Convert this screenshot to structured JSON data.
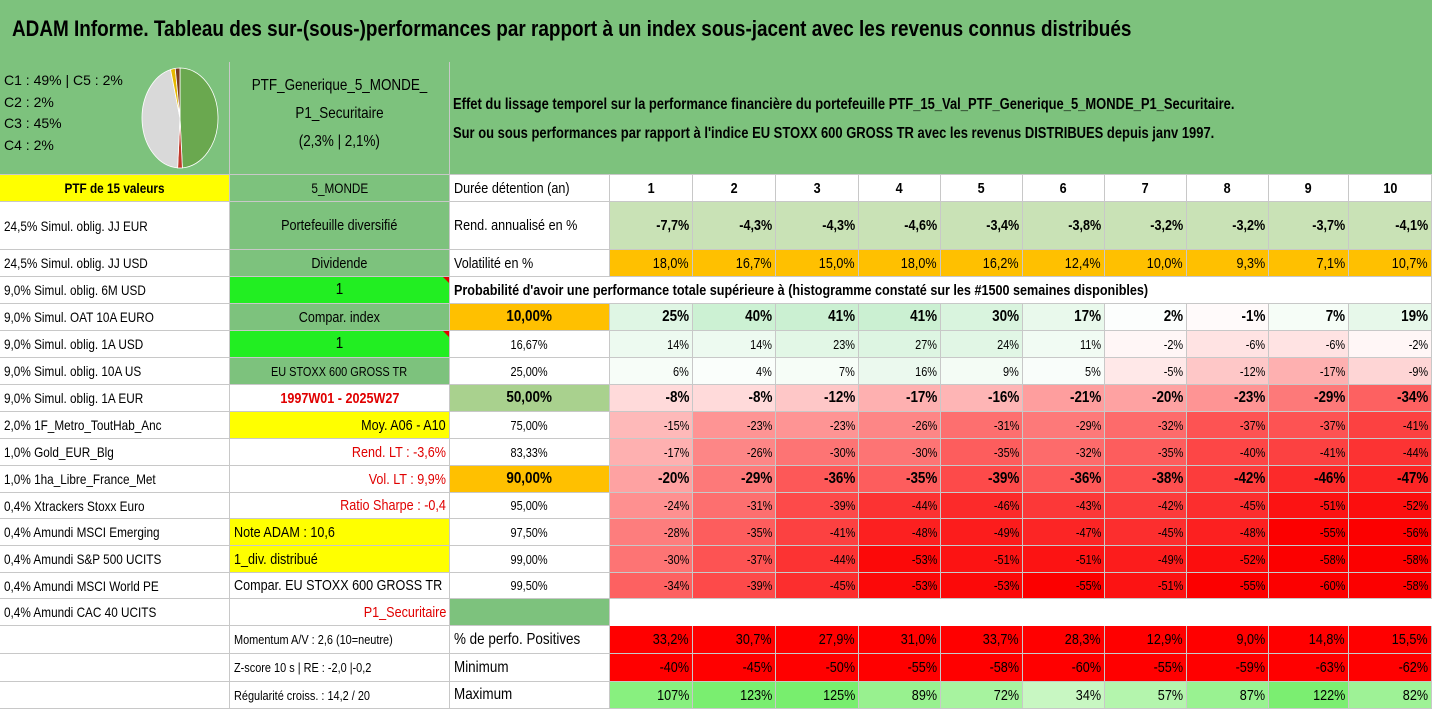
{
  "title": "ADAM Informe. Tableau des sur-(sous-)performances par rapport à un index sous-jacent avec les revenus connus distribués",
  "pie_legend": [
    "C1 : 49% | C5 : 2%",
    "C2 : 2%",
    "C3 : 45%",
    "C4 : 2%"
  ],
  "pie_slices": [
    {
      "label": "C1",
      "value": 49,
      "color": "#6aa84f"
    },
    {
      "label": "C2",
      "value": 2,
      "color": "#c0392b"
    },
    {
      "label": "C3",
      "value": 45,
      "color": "#d9d9d9"
    },
    {
      "label": "C4",
      "value": 2,
      "color": "#e6b800"
    },
    {
      "label": "C5",
      "value": 2,
      "color": "#7a3b1f"
    }
  ],
  "portfolio": {
    "name_line1": "PTF_Generique_5_MONDE_",
    "name_line2": "P1_Securitaire",
    "name_line3": "(2,3% | 2,1%)",
    "count_label": "PTF de 15 valeurs",
    "family": "5_MONDE",
    "type": "Portefeuille diversifié",
    "dividend_label": "Dividende",
    "dividend_value": "1",
    "compar_label": "Compar. index",
    "compar_value": "1",
    "index_name": "EU STOXX 600 GROSS TR",
    "period": "1997W01 - 2025W27",
    "moy": "Moy. A06 - A10",
    "rend_lt": "Rend. LT : -3,6%",
    "vol_lt": "Vol. LT : 9,9%",
    "sharpe": "Ratio Sharpe : -0,4",
    "note": "Note ADAM : 10,6",
    "div_distrib": "1_div. distribué",
    "compar_full": "Compar. EU STOXX 600 GROSS TR",
    "profile": "P1_Securitaire",
    "momentum": "Momentum A/V : 2,6 (10=neutre)",
    "zscore": "Z-score 10 s | RE : -2,0 |-0,2",
    "regularite": "Régularité croiss. : 14,2 / 20"
  },
  "holdings": [
    "24,5% Simul. oblig. JJ EUR",
    "24,5% Simul. oblig. JJ USD",
    "9,0% Simul. oblig. 6M USD",
    "9,0% Simul. OAT 10A EURO",
    "9,0% Simul. oblig. 1A USD",
    "9,0% Simul. oblig. 10A US",
    "9,0% Simul. oblig. 1A EUR",
    "2,0% 1F_Metro_ToutHab_Anc",
    "1,0% Gold_EUR_Blg",
    "1,0% 1ha_Libre_France_Met",
    "0,4% Xtrackers Stoxx Euro",
    "0,4% Amundi MSCI Emerging",
    "0,4% Amundi S&P 500 UCITS",
    "0,4% Amundi MSCI World PE",
    "0,4% Amundi CAC 40 UCITS"
  ],
  "description_line1": "Effet du lissage temporel sur la performance financière du portefeuille PTF_15_Val_PTF_Generique_5_MONDE_P1_Securitaire.",
  "description_line2": "Sur ou sous performances par rapport à l'indice EU STOXX 600 GROSS TR avec les revenus DISTRIBUES depuis janv 1997.",
  "duree_label": "Durée détention (an)",
  "years": [
    "1",
    "2",
    "3",
    "4",
    "5",
    "6",
    "7",
    "8",
    "9",
    "10"
  ],
  "rend_label": "Rend. annualisé en %",
  "rend": [
    "-7,7%",
    "-4,3%",
    "-4,3%",
    "-4,6%",
    "-3,4%",
    "-3,8%",
    "-3,2%",
    "-3,2%",
    "-3,7%",
    "-4,1%"
  ],
  "vol_label": "Volatilité en %",
  "vol": [
    "18,0%",
    "16,7%",
    "15,0%",
    "18,0%",
    "16,2%",
    "12,4%",
    "10,0%",
    "9,3%",
    "7,1%",
    "10,7%"
  ],
  "prob_title": "Probabilité d'avoir une performance totale supérieure à (histogramme constaté sur les #1500 semaines disponibles)",
  "prob_rows": [
    {
      "level": "10,00%",
      "bold": true,
      "values": [
        "25%",
        "40%",
        "41%",
        "41%",
        "30%",
        "17%",
        "2%",
        "-1%",
        "7%",
        "19%"
      ],
      "nums": [
        25,
        40,
        41,
        41,
        30,
        17,
        2,
        -1,
        7,
        19
      ]
    },
    {
      "level": "16,67%",
      "bold": false,
      "values": [
        "14%",
        "14%",
        "23%",
        "27%",
        "24%",
        "11%",
        "-2%",
        "-6%",
        "-6%",
        "-2%"
      ],
      "nums": [
        14,
        14,
        23,
        27,
        24,
        11,
        -2,
        -6,
        -6,
        -2
      ]
    },
    {
      "level": "25,00%",
      "bold": false,
      "values": [
        "6%",
        "4%",
        "7%",
        "16%",
        "9%",
        "5%",
        "-5%",
        "-12%",
        "-17%",
        "-9%"
      ],
      "nums": [
        6,
        4,
        7,
        16,
        9,
        5,
        -5,
        -12,
        -17,
        -9
      ]
    },
    {
      "level": "50,00%",
      "bold": true,
      "values": [
        "-8%",
        "-8%",
        "-12%",
        "-17%",
        "-16%",
        "-21%",
        "-20%",
        "-23%",
        "-29%",
        "-34%"
      ],
      "nums": [
        -8,
        -8,
        -12,
        -17,
        -16,
        -21,
        -20,
        -23,
        -29,
        -34
      ]
    },
    {
      "level": "75,00%",
      "bold": false,
      "values": [
        "-15%",
        "-23%",
        "-23%",
        "-26%",
        "-31%",
        "-29%",
        "-32%",
        "-37%",
        "-37%",
        "-41%"
      ],
      "nums": [
        -15,
        -23,
        -23,
        -26,
        -31,
        -29,
        -32,
        -37,
        -37,
        -41
      ]
    },
    {
      "level": "83,33%",
      "bold": false,
      "values": [
        "-17%",
        "-26%",
        "-30%",
        "-30%",
        "-35%",
        "-32%",
        "-35%",
        "-40%",
        "-41%",
        "-44%"
      ],
      "nums": [
        -17,
        -26,
        -30,
        -30,
        -35,
        -32,
        -35,
        -40,
        -41,
        -44
      ]
    },
    {
      "level": "90,00%",
      "bold": true,
      "values": [
        "-20%",
        "-29%",
        "-36%",
        "-35%",
        "-39%",
        "-36%",
        "-38%",
        "-42%",
        "-46%",
        "-47%"
      ],
      "nums": [
        -20,
        -29,
        -36,
        -35,
        -39,
        -36,
        -38,
        -42,
        -46,
        -47
      ]
    },
    {
      "level": "95,00%",
      "bold": false,
      "values": [
        "-24%",
        "-31%",
        "-39%",
        "-44%",
        "-46%",
        "-43%",
        "-42%",
        "-45%",
        "-51%",
        "-52%"
      ],
      "nums": [
        -24,
        -31,
        -39,
        -44,
        -46,
        -43,
        -42,
        -45,
        -51,
        -52
      ]
    },
    {
      "level": "97,50%",
      "bold": false,
      "values": [
        "-28%",
        "-35%",
        "-41%",
        "-48%",
        "-49%",
        "-47%",
        "-45%",
        "-48%",
        "-55%",
        "-56%"
      ],
      "nums": [
        -28,
        -35,
        -41,
        -48,
        -49,
        -47,
        -45,
        -48,
        -55,
        -56
      ]
    },
    {
      "level": "99,00%",
      "bold": false,
      "values": [
        "-30%",
        "-37%",
        "-44%",
        "-53%",
        "-51%",
        "-51%",
        "-49%",
        "-52%",
        "-58%",
        "-58%"
      ],
      "nums": [
        -30,
        -37,
        -44,
        -53,
        -51,
        -51,
        -49,
        -52,
        -58,
        -58
      ]
    },
    {
      "level": "99,50%",
      "bold": false,
      "values": [
        "-34%",
        "-39%",
        "-45%",
        "-53%",
        "-53%",
        "-55%",
        "-51%",
        "-55%",
        "-60%",
        "-58%"
      ],
      "nums": [
        -34,
        -39,
        -45,
        -53,
        -53,
        -55,
        -51,
        -55,
        -60,
        -58
      ]
    }
  ],
  "pos_label": "% de perfo. Positives",
  "pos": [
    "33,2%",
    "30,7%",
    "27,9%",
    "31,0%",
    "33,7%",
    "28,3%",
    "12,9%",
    "9,0%",
    "14,8%",
    "15,5%"
  ],
  "min_label": "Minimum",
  "min": [
    "-40%",
    "-45%",
    "-50%",
    "-55%",
    "-58%",
    "-60%",
    "-55%",
    "-59%",
    "-63%",
    "-62%"
  ],
  "max_label": "Maximum",
  "max": [
    "107%",
    "123%",
    "125%",
    "89%",
    "72%",
    "34%",
    "57%",
    "87%",
    "122%",
    "82%"
  ],
  "max_nums": [
    107,
    123,
    125,
    89,
    72,
    34,
    57,
    87,
    122,
    82
  ],
  "colors": {
    "title_green": "#7dc27d",
    "lime": "#22ee22",
    "yellow": "#ffff00",
    "orange": "#ffc000",
    "red": "#ff0000",
    "rend_green": "#c9e2b6"
  }
}
